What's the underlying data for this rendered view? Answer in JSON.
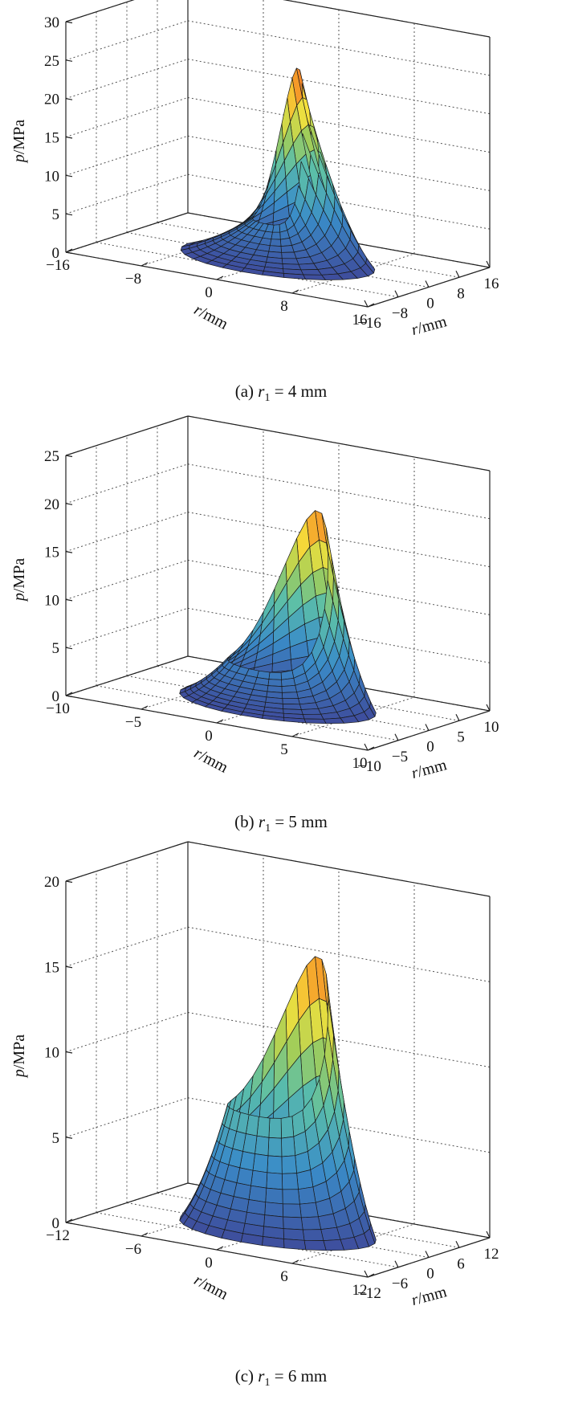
{
  "chart_data": [
    {
      "type": "surface3d",
      "caption": {
        "prefix": "(a) ",
        "var": "r",
        "sub": "1",
        "suffix": " = 4 mm"
      },
      "zlabel": {
        "var": "p",
        "unit": "/MPa"
      },
      "xlabel": {
        "var": "r",
        "unit": "/mm"
      },
      "ylabel": {
        "var": "r",
        "unit": "/mm"
      },
      "xlim": [
        -16,
        16
      ],
      "ylim": [
        -16,
        16
      ],
      "zlim": [
        0,
        30
      ],
      "xticks": [
        "−16",
        "−8",
        "0",
        "8",
        "16"
      ],
      "yticks": [
        "−16",
        "−8",
        "0",
        "8",
        "16"
      ],
      "zticks": [
        "0",
        "5",
        "10",
        "15",
        "20",
        "25",
        "30"
      ],
      "hole_radius": 4,
      "outer_radius": 16,
      "pressure_peak": 25,
      "pressure_low": 5,
      "grid": true
    },
    {
      "type": "surface3d",
      "caption": {
        "prefix": "(b) ",
        "var": "r",
        "sub": "1",
        "suffix": " = 5 mm"
      },
      "zlabel": {
        "var": "p",
        "unit": "/MPa"
      },
      "xlabel": {
        "var": "r",
        "unit": "/mm"
      },
      "ylabel": {
        "var": "r",
        "unit": "/mm"
      },
      "xlim": [
        -10,
        10
      ],
      "ylim": [
        -10,
        10
      ],
      "zlim": [
        0,
        25
      ],
      "xticks": [
        "−10",
        "−5",
        "0",
        "5",
        "10"
      ],
      "yticks": [
        "−10",
        "−5",
        "0",
        "5",
        "10"
      ],
      "zticks": [
        "0",
        "5",
        "10",
        "15",
        "20",
        "25"
      ],
      "hole_radius": 5,
      "outer_radius": 10,
      "pressure_peak": 20,
      "pressure_low": 4,
      "grid": true
    },
    {
      "type": "surface3d",
      "caption": {
        "prefix": "(c) ",
        "var": "r",
        "sub": "1",
        "suffix": " = 6 mm"
      },
      "zlabel": {
        "var": "p",
        "unit": "/MPa"
      },
      "xlabel": {
        "var": "r",
        "unit": "/mm"
      },
      "ylabel": {
        "var": "r",
        "unit": "/mm"
      },
      "xlim": [
        -12,
        12
      ],
      "ylim": [
        -12,
        12
      ],
      "zlim": [
        0,
        20
      ],
      "xticks": [
        "−12",
        "−6",
        "0",
        "6",
        "12"
      ],
      "yticks": [
        "−12",
        "−6",
        "0",
        "6",
        "12"
      ],
      "zticks": [
        "0",
        "5",
        "10",
        "15",
        "20"
      ],
      "hole_radius": 6,
      "outer_radius": 12,
      "pressure_peak": 16,
      "pressure_low": 7,
      "grid": true
    }
  ]
}
